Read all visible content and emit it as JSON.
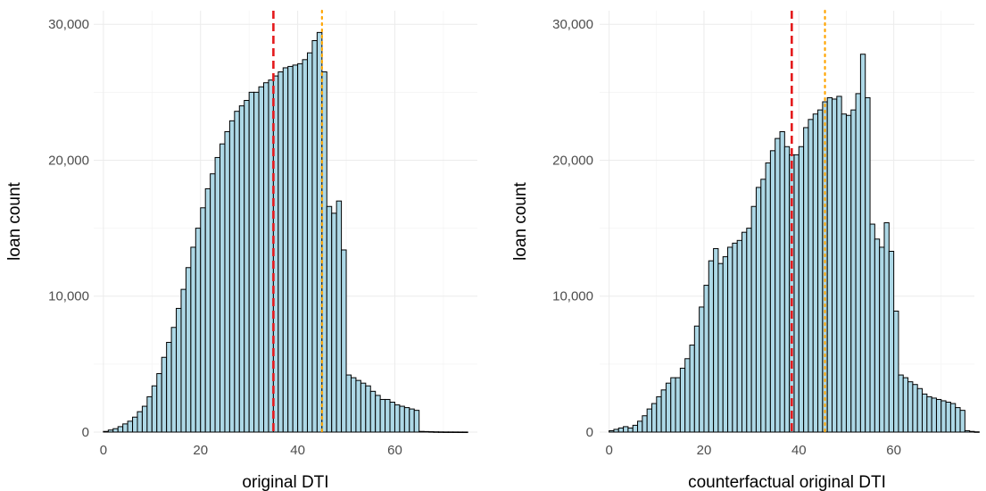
{
  "colors": {
    "bar_fill": "#add8e6",
    "bar_outline": "#000000",
    "dashed_line": "#e41a1c",
    "dotted_line": "#ffa500",
    "grid": "#ebebeb"
  },
  "chart_data": [
    {
      "type": "bar",
      "subtype": "histogram",
      "title": "",
      "xlabel": "original DTI",
      "ylabel": "loan count",
      "xlim": [
        -2,
        77
      ],
      "ylim": [
        0,
        31000
      ],
      "x_ticks": [
        0,
        20,
        40,
        60
      ],
      "x_tick_labels": [
        "0",
        "20",
        "40",
        "60"
      ],
      "y_ticks": [
        0,
        10000,
        20000,
        30000
      ],
      "y_tick_labels": [
        "0",
        "10,000",
        "20,000",
        "30,000"
      ],
      "grid": true,
      "bin_width": 1,
      "bin_start": 0,
      "counts": [
        50,
        150,
        250,
        400,
        600,
        800,
        1100,
        1500,
        1900,
        2600,
        3400,
        4300,
        5500,
        6600,
        7700,
        9100,
        10500,
        12100,
        13600,
        15000,
        16500,
        17900,
        19000,
        20200,
        21200,
        22100,
        22900,
        23600,
        24000,
        24400,
        25000,
        25000,
        25400,
        25700,
        25900,
        26200,
        26500,
        26800,
        26900,
        27000,
        27100,
        27400,
        27900,
        28800,
        29400,
        26500,
        16600,
        16100,
        17000,
        13400,
        4200,
        4000,
        3800,
        3600,
        3400,
        3000,
        2700,
        2400,
        2400,
        2200,
        2000,
        1900,
        1800,
        1700,
        1600,
        50,
        40,
        30,
        20,
        15,
        10,
        10,
        8,
        6,
        5
      ],
      "ref_lines": [
        {
          "x": 35,
          "style": "dashed",
          "color": "#e41a1c"
        },
        {
          "x": 45,
          "style": "dotted",
          "color": "#ffa500"
        }
      ]
    },
    {
      "type": "bar",
      "subtype": "histogram",
      "title": "",
      "xlabel": "counterfactual original DTI",
      "ylabel": "loan count",
      "xlim": [
        -2,
        77
      ],
      "ylim": [
        0,
        31000
      ],
      "x_ticks": [
        0,
        20,
        40,
        60
      ],
      "x_tick_labels": [
        "0",
        "20",
        "40",
        "60"
      ],
      "y_ticks": [
        0,
        10000,
        20000,
        30000
      ],
      "y_tick_labels": [
        "0",
        "10,000",
        "20,000",
        "30,000"
      ],
      "grid": true,
      "bin_width": 1,
      "bin_start": 0,
      "counts": [
        100,
        200,
        300,
        400,
        300,
        500,
        800,
        1200,
        1700,
        2100,
        2600,
        3100,
        3600,
        4000,
        4000,
        4700,
        5400,
        6400,
        7800,
        9200,
        10800,
        12600,
        13500,
        12400,
        12900,
        13600,
        13900,
        14100,
        14700,
        15000,
        16600,
        18000,
        18600,
        19800,
        20700,
        21600,
        22100,
        21000,
        20400,
        20400,
        21000,
        22400,
        23000,
        23400,
        23700,
        24300,
        24600,
        24500,
        24700,
        23400,
        23300,
        23700,
        24900,
        27800,
        24600,
        15300,
        14200,
        13600,
        15400,
        13300,
        8900,
        4200,
        4000,
        3700,
        3500,
        3200,
        2800,
        2600,
        2500,
        2400,
        2300,
        2200,
        2100,
        1800,
        1600,
        100,
        50,
        20
      ],
      "ref_lines": [
        {
          "x": 38.5,
          "style": "dashed",
          "color": "#e41a1c"
        },
        {
          "x": 45.5,
          "style": "dotted",
          "color": "#ffa500"
        }
      ]
    }
  ]
}
